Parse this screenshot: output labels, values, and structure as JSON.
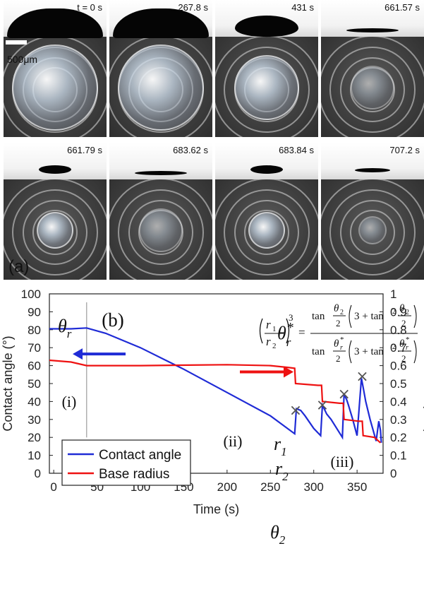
{
  "photos": {
    "frames": [
      {
        "time": "t = 0 s",
        "drop_profile": "large-cap",
        "bubble_size": "large"
      },
      {
        "time": "267.8 s",
        "drop_profile": "large-cap",
        "bubble_size": "large"
      },
      {
        "time": "431 s",
        "drop_profile": "lens",
        "bubble_size": "medium"
      },
      {
        "time": "661.57 s",
        "drop_profile": "thin",
        "bubble_size": "small-faint"
      },
      {
        "time": "661.79 s",
        "drop_profile": "lens-small",
        "bubble_size": "small"
      },
      {
        "time": "683.62 s",
        "drop_profile": "thin",
        "bubble_size": "small-faint"
      },
      {
        "time": "683.84 s",
        "drop_profile": "lens-small",
        "bubble_size": "small"
      },
      {
        "time": "707.2 s",
        "drop_profile": "thin-small",
        "bubble_size": "tiny"
      }
    ],
    "scale_label": "500μm",
    "panel_label": "(a)"
  },
  "chart_data": {
    "type": "line",
    "panel_label": "(b)",
    "xlabel": "Time (s)",
    "ylabel_left": "Contact angle (°)",
    "ylabel_right": "Base radius (mm)",
    "xlim": [
      -5,
      380
    ],
    "ylim_left": [
      0,
      100
    ],
    "ylim_right": [
      0,
      1
    ],
    "xticks": [
      0,
      50,
      100,
      150,
      200,
      250,
      300,
      350
    ],
    "yticks_left": [
      0,
      10,
      20,
      30,
      40,
      50,
      60,
      70,
      80,
      90,
      100
    ],
    "yticks_right": [
      0,
      0.1,
      0.2,
      0.3,
      0.4,
      0.5,
      0.6,
      0.7,
      0.8,
      0.9,
      1
    ],
    "series": [
      {
        "name": "Contact angle",
        "axis": "left",
        "color": "#1f2bd6",
        "x": [
          -5,
          20,
          38,
          60,
          100,
          150,
          200,
          250,
          278,
          280,
          285,
          290,
          300,
          308,
          310,
          312,
          315,
          320,
          333,
          335,
          338,
          340,
          345,
          350,
          355,
          357,
          360,
          365,
          372,
          375,
          377,
          378
        ],
        "y": [
          80.5,
          80.5,
          81,
          78,
          70,
          58,
          45,
          32,
          22,
          36,
          35,
          32,
          25,
          21,
          38,
          36,
          33,
          30,
          20,
          44,
          41,
          38,
          30,
          21,
          53,
          48,
          40,
          30,
          18,
          29,
          24,
          17
        ]
      },
      {
        "name": "Base radius",
        "axis": "right",
        "color": "#ee1111",
        "x": [
          -5,
          20,
          38,
          60,
          100,
          200,
          250,
          270,
          278,
          279,
          305,
          309,
          310,
          330,
          334,
          335,
          352,
          356,
          357,
          370,
          377
        ],
        "y": [
          0.63,
          0.62,
          0.6,
          0.6,
          0.6,
          0.605,
          0.6,
          0.59,
          0.585,
          0.5,
          0.49,
          0.49,
          0.4,
          0.39,
          0.39,
          0.3,
          0.29,
          0.29,
          0.21,
          0.2,
          0.17
        ]
      }
    ],
    "markers": [
      {
        "x": 279,
        "y": 35,
        "symbol": "×"
      },
      {
        "x": 310,
        "y": 38,
        "symbol": "×"
      },
      {
        "x": 335,
        "y": 44,
        "symbol": "×"
      },
      {
        "x": 356,
        "y": 54,
        "symbol": "×"
      }
    ],
    "vline_x": 38,
    "regions": [
      "(i)",
      "(ii)",
      "(iii)"
    ],
    "labels": {
      "theta_r": "θ",
      "theta_r_sub": "r",
      "theta_2": "θ",
      "theta_2_sub": "2",
      "theta_r_star": "θ",
      "theta_r_star_sub": "r",
      "theta_r_star_sup": "*",
      "r1": "r",
      "r1_sub": "1",
      "r2": "r",
      "r2_sub": "2"
    },
    "equation": {
      "lhs_r1": "r",
      "lhs_sub1": "1",
      "lhs_r2": "r",
      "lhs_sub2": "2",
      "lhs_exp": "3",
      "eq": "=",
      "tan": "tan",
      "theta": "θ",
      "sub_2": "2",
      "sub_r": "r",
      "star": "*",
      "two": "2",
      "three_plus": "3 + tan",
      "sq": "2"
    },
    "legend": {
      "placement": "bottom-left",
      "items": [
        "Contact angle",
        "Base radius"
      ]
    }
  }
}
